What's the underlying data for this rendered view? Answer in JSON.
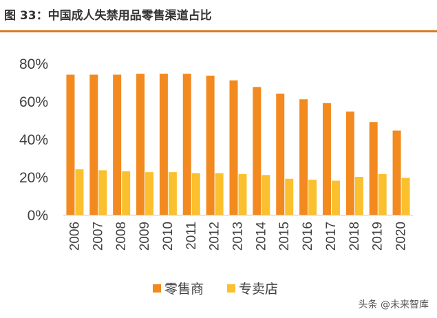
{
  "figure": {
    "title": "图 33：中国成人失禁用品零售渠道占比",
    "watermark": "头条 @未来智库"
  },
  "colors": {
    "accent_rule": "#d97b21",
    "series_1": "#f28a1f",
    "series_2": "#fbc02d"
  },
  "chart_data": {
    "type": "bar",
    "categories": [
      "2006",
      "2007",
      "2008",
      "2009",
      "2010",
      "2011",
      "2012",
      "2013",
      "2014",
      "2015",
      "2016",
      "2017",
      "2018",
      "2019",
      "2020"
    ],
    "series": [
      {
        "name": "零售商",
        "color": "#f28a1f",
        "values": [
          74,
          74,
          74,
          74.5,
          74.5,
          74.5,
          73.5,
          71,
          67.5,
          64,
          61,
          59,
          54.5,
          49,
          44.5
        ]
      },
      {
        "name": "专卖店",
        "color": "#fbc02d",
        "values": [
          24,
          23.5,
          23,
          22.5,
          22.5,
          22,
          22,
          21.5,
          21,
          19,
          18.5,
          18,
          20,
          21.5,
          19.5
        ]
      }
    ],
    "ylim": [
      0,
      80
    ],
    "yticks": [
      0,
      20,
      40,
      60,
      80
    ],
    "ytick_labels": [
      "0%",
      "20%",
      "40%",
      "60%",
      "80%"
    ],
    "grid": false,
    "legend": "bottom-center"
  }
}
